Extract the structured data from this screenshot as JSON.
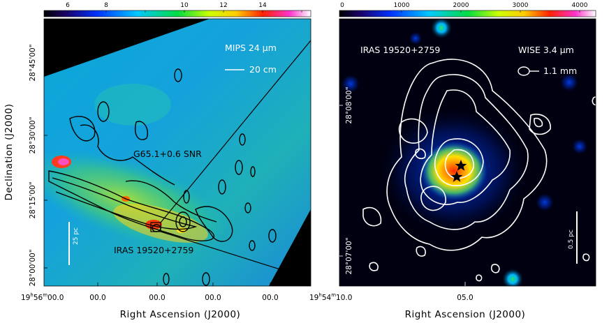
{
  "figure": {
    "y_axis_title": "Declination (J2000)",
    "left_panel": {
      "x_axis_title": "Right Ascension (J2000)",
      "colorbar_ticks": [
        "6",
        "8",
        "10",
        "12",
        "14"
      ],
      "x_ticks": [
        "19h56m00s0",
        "00s0",
        "00s0",
        "00s0",
        "00s0",
        "19h54m10s0"
      ],
      "x_tick_first_main": "19",
      "x_tick_first_h": "h",
      "x_tick_first_mid": "56",
      "x_tick_first_m": "m",
      "x_tick_first_end": "00.0",
      "x_tick_mid": "00.0",
      "x_tick_last_main": "19",
      "x_tick_last_h": "h",
      "x_tick_last_mid": "54",
      "x_tick_last_m": "m",
      "x_tick_last_end": "10.0",
      "y_ticks": [
        "28°45'00\"",
        "28°30'00\"",
        "28°15'00\"",
        "28°00'00\""
      ],
      "label_band": "MIPS 24 μm",
      "label_contour": "20 cm",
      "label_snr": "G65.1+0.6 SNR",
      "label_source": "IRAS 19520+2759",
      "scalebar": "25 pc",
      "colormap": "rainbow"
    },
    "right_panel": {
      "x_axis_title": "Right Ascension (J2000)",
      "colorbar_ticks": [
        "0",
        "1000",
        "2000",
        "3000",
        "4000"
      ],
      "x_ticks": [
        "05.0"
      ],
      "y_ticks": [
        "28°08'00\"",
        "28°07'00\""
      ],
      "label_source": "IRAS 19520+2759",
      "label_band": "WISE 3.4 μm",
      "label_contour": "1.1 mm",
      "scalebar": "0.5 pc",
      "colormap": "rainbow on black"
    }
  }
}
